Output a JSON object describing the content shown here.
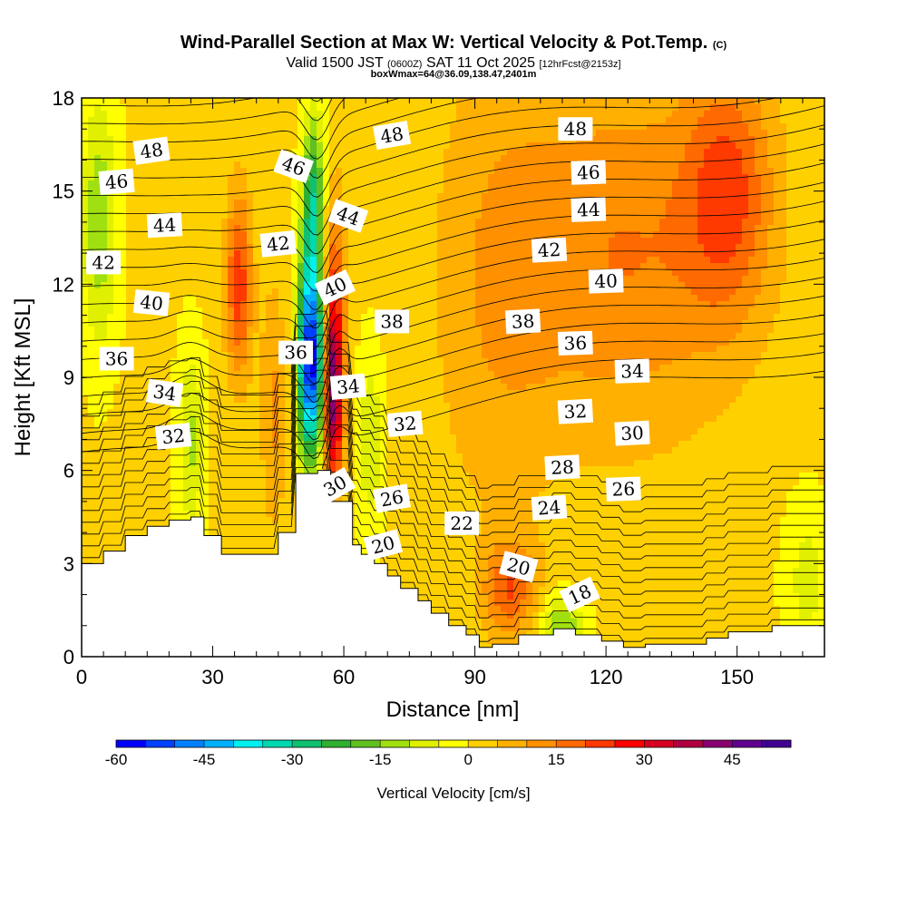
{
  "chart_data": {
    "type": "heatmap",
    "title": "Wind-Parallel Section at Max W: Vertical Velocity & Pot.Temp.",
    "title_suffix": "(C)",
    "subtitle_valid": "Valid 1500 JST",
    "subtitle_utc": "(0600Z)",
    "subtitle_date": "SAT 11 Oct 2025",
    "subtitle_fcst": "[12hrFcst@2153z]",
    "subtitle2": "boxWmax=64@36.09,138.47,2401m",
    "xlabel": "Distance [nm]",
    "ylabel": "Height [Kft MSL]",
    "xlim": [
      0,
      170
    ],
    "ylim": [
      0,
      18
    ],
    "xticks": [
      0,
      30,
      60,
      90,
      120,
      150
    ],
    "yticks": [
      0,
      3,
      6,
      9,
      12,
      15,
      18
    ],
    "colorbar": {
      "title": "Vertical Velocity [cm/s]",
      "min": -60,
      "max": 55,
      "step": 5,
      "tick_values": [
        -60,
        -45,
        -30,
        -15,
        0,
        15,
        30,
        45
      ],
      "colors": [
        "#0000ff",
        "#0040ff",
        "#0080ff",
        "#00b0ff",
        "#00f0f0",
        "#00d8b0",
        "#10c070",
        "#30b030",
        "#60c020",
        "#a0e010",
        "#e0f000",
        "#ffff00",
        "#ffd000",
        "#ffb000",
        "#ff9000",
        "#ff6a00",
        "#ff3a00",
        "#ff0000",
        "#d80020",
        "#b00040",
        "#880070",
        "#600090",
        "#400090"
      ]
    },
    "terrain_profile": {
      "x_nm": [
        0,
        5,
        5,
        10,
        10,
        15,
        15,
        20,
        20,
        25,
        25,
        28,
        28,
        32,
        32,
        45,
        45,
        49,
        49,
        54,
        54,
        57,
        57,
        62,
        62,
        64,
        64,
        67,
        67,
        70,
        70,
        73,
        73,
        77,
        77,
        80,
        80,
        84,
        84,
        88,
        88,
        91,
        91,
        94,
        94,
        100,
        100,
        104,
        104,
        108,
        108,
        113,
        113,
        119,
        119,
        124,
        124,
        129,
        129,
        143,
        143,
        148,
        148,
        158,
        158,
        170
      ],
      "height_kft": [
        3,
        3,
        3.4,
        3.4,
        3.9,
        3.9,
        4.2,
        4.2,
        4.4,
        4.4,
        4.5,
        4.5,
        3.9,
        3.9,
        3.3,
        3.3,
        4.0,
        4.0,
        5.9,
        5.9,
        6.0,
        6.0,
        5.0,
        5.0,
        3.6,
        3.6,
        3.3,
        3.3,
        3.0,
        3.0,
        2.6,
        2.6,
        2.2,
        2.2,
        1.8,
        1.8,
        1.4,
        1.4,
        1.0,
        1.0,
        0.7,
        0.7,
        0.3,
        0.3,
        0.4,
        0.4,
        0.7,
        0.7,
        0.7,
        0.7,
        0.9,
        0.9,
        0.7,
        0.7,
        0.5,
        0.5,
        0.3,
        0.3,
        0.4,
        0.4,
        0.6,
        0.6,
        0.8,
        0.8,
        1.0,
        1.0
      ]
    },
    "w_features": [
      {
        "x": 52.5,
        "z": 9.5,
        "sx": 3.0,
        "sz": 3.0,
        "w": -60
      },
      {
        "x": 53.0,
        "z": 14.5,
        "sx": 2.5,
        "sz": 2.8,
        "w": -30
      },
      {
        "x": 57.5,
        "z": 8.5,
        "sx": 2.4,
        "sz": 2.8,
        "w": 45
      },
      {
        "x": 57.5,
        "z": 12.5,
        "sx": 3.0,
        "sz": 3.0,
        "w": 15
      },
      {
        "x": 36.0,
        "z": 12.0,
        "sx": 3.0,
        "sz": 3.0,
        "w": 22
      },
      {
        "x": 44.0,
        "z": 8.0,
        "sx": 3.0,
        "sz": 4.0,
        "w": 10
      },
      {
        "x": 4.0,
        "z": 14.0,
        "sx": 4.0,
        "sz": 4.0,
        "w": -15
      },
      {
        "x": 25.0,
        "z": 7.0,
        "sx": 3.0,
        "sz": 3.0,
        "w": -12
      },
      {
        "x": 66.0,
        "z": 7.0,
        "sx": 3.0,
        "sz": 3.0,
        "w": -10
      },
      {
        "x": 110.0,
        "z": 1.0,
        "sx": 5.0,
        "sz": 1.0,
        "w": -16
      },
      {
        "x": 125.0,
        "z": 13.0,
        "sx": 25.0,
        "sz": 6.0,
        "w": 14
      },
      {
        "x": 148.0,
        "z": 15.0,
        "sx": 10.0,
        "sz": 4.0,
        "w": 18
      },
      {
        "x": 98.0,
        "z": 2.2,
        "sx": 6.0,
        "sz": 1.5,
        "w": 18
      },
      {
        "x": 166.0,
        "z": 2.5,
        "sx": 5.0,
        "sz": 2.5,
        "w": -8
      },
      {
        "x": 95.0,
        "z": 12.0,
        "sx": 15.0,
        "sz": 8.0,
        "w": 8
      }
    ],
    "theta_levels": [
      16,
      17,
      18,
      19,
      20,
      21,
      22,
      23,
      24,
      25,
      26,
      27,
      28,
      29,
      30,
      31,
      32,
      33,
      34,
      35,
      36,
      37,
      38,
      39,
      40,
      41,
      42,
      43,
      44,
      45,
      46,
      47,
      48,
      49,
      50
    ],
    "contour_labels": [
      {
        "text": "48",
        "x": 16,
        "z": 16.3,
        "rot": -8
      },
      {
        "text": "46",
        "x": 8,
        "z": 15.3,
        "rot": -5
      },
      {
        "text": "44",
        "x": 19,
        "z": 13.9,
        "rot": -3
      },
      {
        "text": "42",
        "x": 5,
        "z": 12.7,
        "rot": 0
      },
      {
        "text": "40",
        "x": 16,
        "z": 11.4,
        "rot": 6
      },
      {
        "text": "36",
        "x": 8,
        "z": 9.6,
        "rot": 0
      },
      {
        "text": "34",
        "x": 19,
        "z": 8.5,
        "rot": 8
      },
      {
        "text": "32",
        "x": 21,
        "z": 7.1,
        "rot": -6
      },
      {
        "text": "46",
        "x": 48.5,
        "z": 15.8,
        "rot": 20
      },
      {
        "text": "42",
        "x": 45,
        "z": 13.3,
        "rot": -6
      },
      {
        "text": "36",
        "x": 49,
        "z": 9.8,
        "rot": 0
      },
      {
        "text": "48",
        "x": 71,
        "z": 16.8,
        "rot": -10
      },
      {
        "text": "44",
        "x": 61,
        "z": 14.2,
        "rot": 20
      },
      {
        "text": "40",
        "x": 58,
        "z": 11.9,
        "rot": -25
      },
      {
        "text": "34",
        "x": 61,
        "z": 8.7,
        "rot": -5
      },
      {
        "text": "38",
        "x": 71,
        "z": 10.8,
        "rot": 0
      },
      {
        "text": "32",
        "x": 74,
        "z": 7.5,
        "rot": -5
      },
      {
        "text": "30",
        "x": 58,
        "z": 5.5,
        "rot": -30
      },
      {
        "text": "26",
        "x": 71,
        "z": 5.1,
        "rot": -10
      },
      {
        "text": "20",
        "x": 69,
        "z": 3.6,
        "rot": -15
      },
      {
        "text": "22",
        "x": 87,
        "z": 4.3,
        "rot": 0
      },
      {
        "text": "20",
        "x": 100,
        "z": 2.9,
        "rot": 15
      },
      {
        "text": "18",
        "x": 114,
        "z": 2.0,
        "rot": -25
      },
      {
        "text": "24",
        "x": 107,
        "z": 4.8,
        "rot": -4
      },
      {
        "text": "26",
        "x": 124,
        "z": 5.4,
        "rot": -2
      },
      {
        "text": "28",
        "x": 110,
        "z": 6.1,
        "rot": -3
      },
      {
        "text": "30",
        "x": 126,
        "z": 7.2,
        "rot": -3
      },
      {
        "text": "32",
        "x": 113,
        "z": 7.9,
        "rot": -3
      },
      {
        "text": "34",
        "x": 126,
        "z": 9.2,
        "rot": -2
      },
      {
        "text": "36",
        "x": 113,
        "z": 10.1,
        "rot": -2
      },
      {
        "text": "38",
        "x": 101,
        "z": 10.8,
        "rot": -3
      },
      {
        "text": "40",
        "x": 120,
        "z": 12.1,
        "rot": -2
      },
      {
        "text": "42",
        "x": 107,
        "z": 13.1,
        "rot": -3
      },
      {
        "text": "44",
        "x": 116,
        "z": 14.4,
        "rot": -2
      },
      {
        "text": "46",
        "x": 116,
        "z": 15.6,
        "rot": -2
      },
      {
        "text": "48",
        "x": 113,
        "z": 17.0,
        "rot": 0
      }
    ]
  }
}
